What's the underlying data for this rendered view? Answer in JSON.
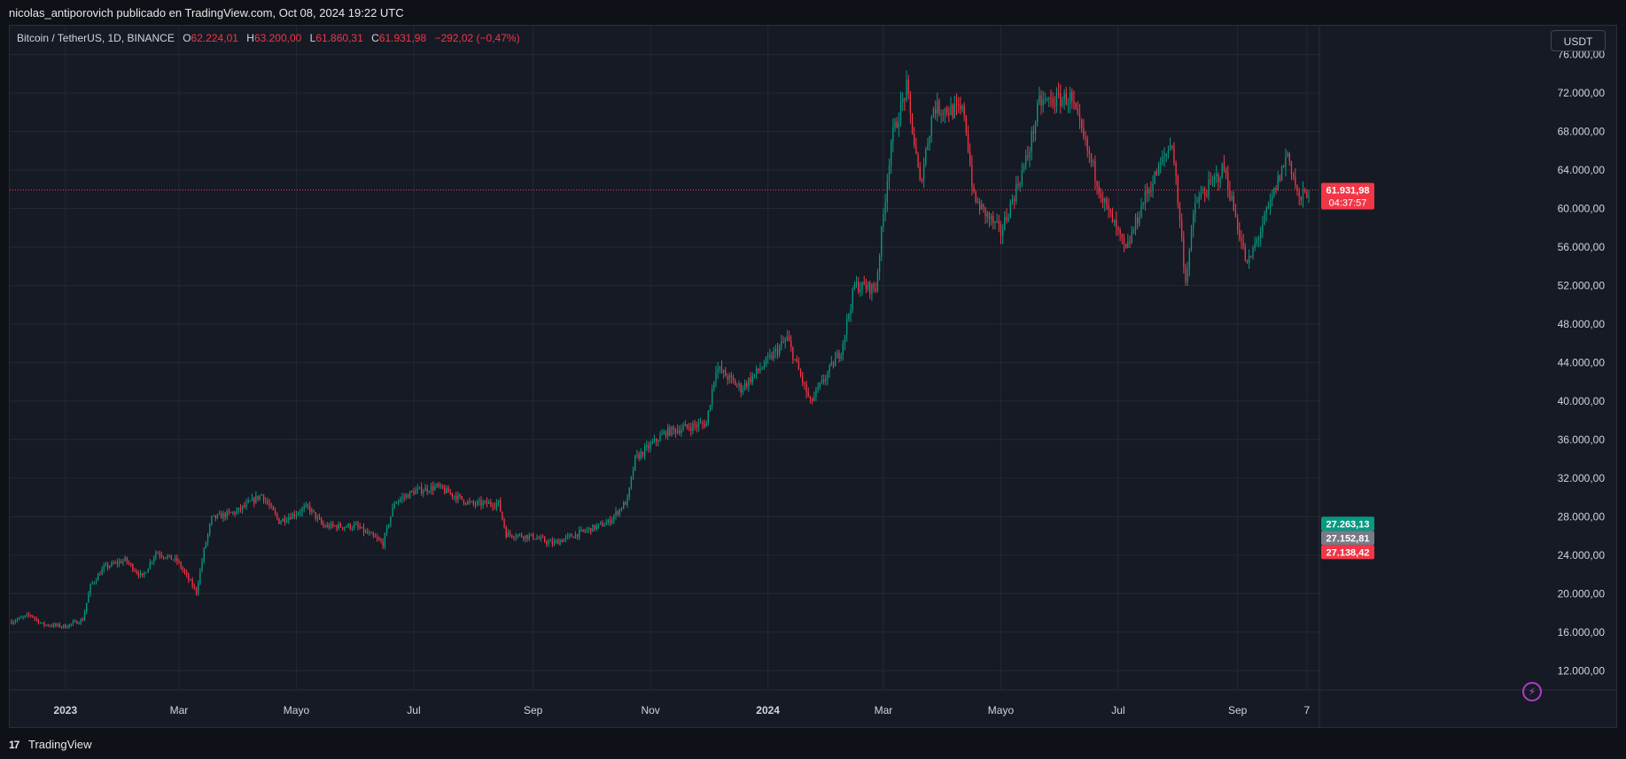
{
  "header": {
    "publish_line": "nicolas_antiporovich publicado en TradingView.com, Oct 08, 2024 19:22 UTC"
  },
  "legend": {
    "symbol": "Bitcoin / TetherUS, 1D, BINANCE",
    "open_label": "O",
    "open": "62.224,01",
    "high_label": "H",
    "high": "63.200,00",
    "low_label": "L",
    "low": "61.860,31",
    "close_label": "C",
    "close": "61.931,98",
    "change": "−292,02 (−0,47%)"
  },
  "currency_button": "USDT",
  "footer": {
    "logo": "TradingView"
  },
  "colors": {
    "up": "#089981",
    "down": "#f23645",
    "background": "#161a25",
    "grid": "#242833",
    "text": "#d1d4dc"
  },
  "chart_data": {
    "type": "candlestick",
    "symbol": "Bitcoin / TetherUS",
    "interval": "1D",
    "exchange": "BINANCE",
    "ylim": [
      10000,
      79000
    ],
    "y_ticks": [
      {
        "value": 12000,
        "label": "12.000,00"
      },
      {
        "value": 16000,
        "label": "16.000,00"
      },
      {
        "value": 20000,
        "label": "20.000,00"
      },
      {
        "value": 24000,
        "label": "24.000,00"
      },
      {
        "value": 28000,
        "label": "28.000,00"
      },
      {
        "value": 32000,
        "label": "32.000,00"
      },
      {
        "value": 36000,
        "label": "36.000,00"
      },
      {
        "value": 40000,
        "label": "40.000,00"
      },
      {
        "value": 44000,
        "label": "44.000,00"
      },
      {
        "value": 48000,
        "label": "48.000,00"
      },
      {
        "value": 52000,
        "label": "52.000,00"
      },
      {
        "value": 56000,
        "label": "56.000,00"
      },
      {
        "value": 60000,
        "label": "60.000,00"
      },
      {
        "value": 64000,
        "label": "64.000,00"
      },
      {
        "value": 68000,
        "label": "68.000,00"
      },
      {
        "value": 72000,
        "label": "72.000,00"
      },
      {
        "value": 76000,
        "label": "76.000,00"
      }
    ],
    "x_ticks": [
      {
        "date": "2023-01-01",
        "label": "2023",
        "bold": true
      },
      {
        "date": "2023-03-01",
        "label": "Mar"
      },
      {
        "date": "2023-05-01",
        "label": "Mayo"
      },
      {
        "date": "2023-07-01",
        "label": "Jul"
      },
      {
        "date": "2023-09-01",
        "label": "Sep"
      },
      {
        "date": "2023-11-01",
        "label": "Nov"
      },
      {
        "date": "2024-01-01",
        "label": "2024",
        "bold": true
      },
      {
        "date": "2024-03-01",
        "label": "Mar"
      },
      {
        "date": "2024-05-01",
        "label": "Mayo"
      },
      {
        "date": "2024-07-01",
        "label": "Jul"
      },
      {
        "date": "2024-09-01",
        "label": "Sep"
      },
      {
        "date": "2024-10-07",
        "label": "7"
      }
    ],
    "x_range": [
      "2022-12-04",
      "2024-10-08"
    ],
    "price_path": [
      {
        "date": "2022-12-04",
        "price": 17100
      },
      {
        "date": "2022-12-14",
        "price": 17800
      },
      {
        "date": "2022-12-20",
        "price": 16800
      },
      {
        "date": "2023-01-01",
        "price": 16600
      },
      {
        "date": "2023-01-10",
        "price": 17300
      },
      {
        "date": "2023-01-14",
        "price": 20800
      },
      {
        "date": "2023-01-21",
        "price": 22700
      },
      {
        "date": "2023-02-01",
        "price": 23500
      },
      {
        "date": "2023-02-10",
        "price": 21700
      },
      {
        "date": "2023-02-17",
        "price": 24300
      },
      {
        "date": "2023-02-28",
        "price": 23400
      },
      {
        "date": "2023-03-10",
        "price": 20200
      },
      {
        "date": "2023-03-14",
        "price": 24500
      },
      {
        "date": "2023-03-18",
        "price": 27800
      },
      {
        "date": "2023-03-31",
        "price": 28500
      },
      {
        "date": "2023-04-13",
        "price": 30300
      },
      {
        "date": "2023-04-22",
        "price": 27500
      },
      {
        "date": "2023-05-07",
        "price": 29000
      },
      {
        "date": "2023-05-15",
        "price": 27000
      },
      {
        "date": "2023-06-01",
        "price": 27000
      },
      {
        "date": "2023-06-15",
        "price": 25200
      },
      {
        "date": "2023-06-21",
        "price": 29500
      },
      {
        "date": "2023-07-01",
        "price": 30600
      },
      {
        "date": "2023-07-13",
        "price": 31100
      },
      {
        "date": "2023-07-31",
        "price": 29300
      },
      {
        "date": "2023-08-14",
        "price": 29400
      },
      {
        "date": "2023-08-18",
        "price": 26200
      },
      {
        "date": "2023-09-01",
        "price": 25900
      },
      {
        "date": "2023-09-11",
        "price": 25200
      },
      {
        "date": "2023-09-25",
        "price": 26300
      },
      {
        "date": "2023-10-10",
        "price": 27400
      },
      {
        "date": "2023-10-20",
        "price": 29700
      },
      {
        "date": "2023-10-24",
        "price": 34000
      },
      {
        "date": "2023-11-09",
        "price": 36800
      },
      {
        "date": "2023-11-30",
        "price": 37700
      },
      {
        "date": "2023-12-05",
        "price": 43500
      },
      {
        "date": "2023-12-18",
        "price": 41300
      },
      {
        "date": "2024-01-01",
        "price": 44200
      },
      {
        "date": "2024-01-11",
        "price": 46500
      },
      {
        "date": "2024-01-23",
        "price": 39800
      },
      {
        "date": "2024-02-08",
        "price": 45300
      },
      {
        "date": "2024-02-15",
        "price": 52000
      },
      {
        "date": "2024-02-26",
        "price": 51700
      },
      {
        "date": "2024-03-05",
        "price": 67000
      },
      {
        "date": "2024-03-13",
        "price": 72500
      },
      {
        "date": "2024-03-20",
        "price": 62500
      },
      {
        "date": "2024-03-27",
        "price": 70500
      },
      {
        "date": "2024-04-12",
        "price": 70000
      },
      {
        "date": "2024-04-17",
        "price": 61000
      },
      {
        "date": "2024-05-01",
        "price": 57500
      },
      {
        "date": "2024-05-15",
        "price": 65500
      },
      {
        "date": "2024-05-21",
        "price": 71000
      },
      {
        "date": "2024-06-06",
        "price": 71500
      },
      {
        "date": "2024-06-24",
        "price": 60500
      },
      {
        "date": "2024-07-05",
        "price": 55500
      },
      {
        "date": "2024-07-14",
        "price": 60800
      },
      {
        "date": "2024-07-29",
        "price": 67000
      },
      {
        "date": "2024-08-05",
        "price": 52500
      },
      {
        "date": "2024-08-10",
        "price": 60500
      },
      {
        "date": "2024-08-25",
        "price": 64200
      },
      {
        "date": "2024-09-06",
        "price": 54000
      },
      {
        "date": "2024-09-18",
        "price": 60500
      },
      {
        "date": "2024-09-27",
        "price": 65800
      },
      {
        "date": "2024-10-03",
        "price": 60800
      },
      {
        "date": "2024-10-08",
        "price": 61932
      }
    ],
    "price_labels": [
      {
        "value": 61931.98,
        "label": "61.931,98",
        "sub": "04:37:57",
        "color": "#f23645"
      },
      {
        "value": 27263.13,
        "label": "27.263,13",
        "color": "#089981"
      },
      {
        "value": 27152.81,
        "label": "27.152,81",
        "color": "#787b86"
      },
      {
        "value": 27138.42,
        "label": "27.138,42",
        "color": "#f23645"
      }
    ],
    "current_price": 61931.98,
    "grid": true,
    "legend_position": "top-left"
  }
}
